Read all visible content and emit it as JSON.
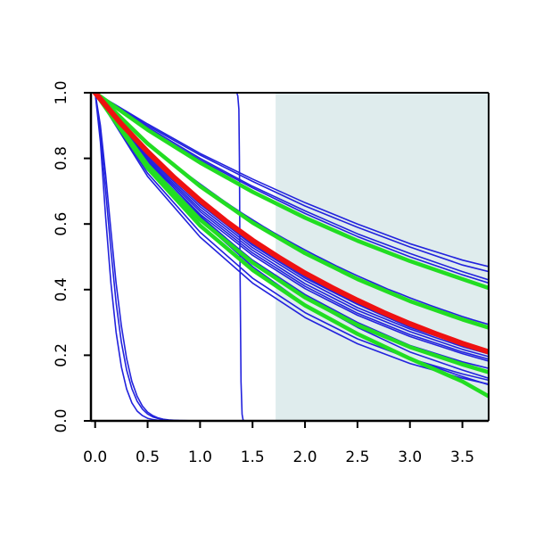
{
  "chart_data": {
    "type": "line",
    "title": "",
    "xlabel": "",
    "ylabel": "",
    "xlim": [
      -0.04,
      3.75
    ],
    "ylim": [
      0,
      1
    ],
    "x_ticks": [
      "0.0",
      "0.5",
      "1.0",
      "1.5",
      "2.0",
      "2.5",
      "3.0",
      "3.5"
    ],
    "y_ticks": [
      "0.0",
      "0.2",
      "0.4",
      "0.6",
      "0.8",
      "1.0"
    ],
    "grid": false,
    "legend": "none",
    "shaded_region": {
      "x_start": 1.72,
      "x_end": 3.75,
      "color": "#dfeced"
    },
    "colors": {
      "blue": "#2222dd",
      "green": "#22dd22",
      "red": "#ee1111",
      "axis": "#000000"
    },
    "series": [
      {
        "color": "#2222dd",
        "width": 1.6,
        "x": [
          0,
          0.1,
          0.2,
          0.3,
          0.4,
          0.5,
          0.6,
          0.7,
          0.8,
          0.9,
          1.0,
          1.1,
          1.2,
          1.3,
          1.4,
          1.5,
          1.6,
          1.7,
          1.8,
          1.9,
          2.0,
          2.1,
          2.2,
          2.3,
          2.4,
          2.5,
          2.6,
          2.7,
          2.8,
          2.9,
          3.0,
          3.1,
          3.2,
          3.3,
          3.4,
          3.5,
          3.6,
          3.75
        ],
        "y": [
          1,
          0.969,
          0.938,
          0.908,
          0.879,
          0.85,
          0.823,
          0.796,
          0.771,
          0.746,
          0.722,
          0.699,
          0.676,
          0.654,
          0.633,
          0.613,
          0.593,
          0.574,
          0.556,
          0.538,
          0.521,
          0.504,
          0.488,
          0.472,
          0.457,
          0.442,
          0.428,
          0.414,
          0.4,
          0.388,
          0.375,
          0.363,
          0.351,
          0.34,
          0.329,
          0.318,
          0.308,
          0.294
        ]
      },
      {
        "color": "#2222dd",
        "width": 1.6,
        "x": [
          0,
          0.5,
          1.0,
          1.5,
          2.0,
          2.5,
          3.0,
          3.5,
          3.75
        ],
        "y": [
          1,
          0.9,
          0.81,
          0.73,
          0.655,
          0.59,
          0.53,
          0.475,
          0.455
        ]
      },
      {
        "color": "#2222dd",
        "width": 1.6,
        "x": [
          0,
          0.5,
          1.0,
          1.5,
          2.0,
          2.5,
          3.0,
          3.5,
          3.75
        ],
        "y": [
          1,
          0.905,
          0.815,
          0.737,
          0.665,
          0.6,
          0.54,
          0.49,
          0.47
        ]
      },
      {
        "color": "#2222dd",
        "width": 1.6,
        "x": [
          0,
          0.5,
          1.0,
          1.5,
          2.0,
          2.5,
          3.0,
          3.5,
          3.75
        ],
        "y": [
          1,
          0.895,
          0.8,
          0.715,
          0.64,
          0.57,
          0.51,
          0.455,
          0.43
        ]
      },
      {
        "color": "#2222dd",
        "width": 1.6,
        "x": [
          0,
          0.5,
          1.0,
          1.5,
          2.0,
          2.5,
          3.0,
          3.5,
          3.75
        ],
        "y": [
          1,
          0.89,
          0.795,
          0.71,
          0.632,
          0.562,
          0.5,
          0.445,
          0.42
        ]
      },
      {
        "color": "#2222dd",
        "width": 1.6,
        "x": [
          0,
          0.5,
          1.0,
          1.5,
          2.0,
          2.5,
          3.0,
          3.5,
          3.75
        ],
        "y": [
          1,
          0.81,
          0.66,
          0.535,
          0.435,
          0.355,
          0.285,
          0.232,
          0.21
        ]
      },
      {
        "color": "#2222dd",
        "width": 1.6,
        "x": [
          0,
          0.5,
          1.0,
          1.5,
          2.0,
          2.5,
          3.0,
          3.5,
          3.75
        ],
        "y": [
          1,
          0.815,
          0.665,
          0.54,
          0.44,
          0.357,
          0.29,
          0.237,
          0.215
        ]
      },
      {
        "color": "#2222dd",
        "width": 1.6,
        "x": [
          0,
          0.5,
          1.0,
          1.5,
          2.0,
          2.5,
          3.0,
          3.5,
          3.75
        ],
        "y": [
          1,
          0.805,
          0.653,
          0.528,
          0.428,
          0.345,
          0.28,
          0.226,
          0.204
        ]
      },
      {
        "color": "#2222dd",
        "width": 1.6,
        "x": [
          0,
          0.5,
          1.0,
          1.5,
          2.0,
          2.5,
          3.0,
          3.5,
          3.75
        ],
        "y": [
          1,
          0.8,
          0.645,
          0.52,
          0.418,
          0.337,
          0.272,
          0.218,
          0.196
        ]
      },
      {
        "color": "#2222dd",
        "width": 1.6,
        "x": [
          0,
          0.5,
          1.0,
          1.5,
          2.0,
          2.5,
          3.0,
          3.5,
          3.75
        ],
        "y": [
          1,
          0.795,
          0.638,
          0.512,
          0.41,
          0.328,
          0.263,
          0.21,
          0.188
        ]
      },
      {
        "color": "#2222dd",
        "width": 1.6,
        "x": [
          0,
          0.5,
          1.0,
          1.5,
          2.0,
          2.5,
          3.0,
          3.5,
          3.75
        ],
        "y": [
          1,
          0.79,
          0.63,
          0.505,
          0.403,
          0.322,
          0.257,
          0.205,
          0.182
        ]
      },
      {
        "color": "#2222dd",
        "width": 1.6,
        "x": [
          0,
          0.5,
          1.0,
          1.5,
          2.0,
          2.5,
          3.0,
          3.5,
          3.75
        ],
        "y": [
          1,
          0.785,
          0.62,
          0.49,
          0.385,
          0.3,
          0.23,
          0.18,
          0.16
        ]
      },
      {
        "color": "#2222dd",
        "width": 1.6,
        "x": [
          0,
          0.5,
          1.0,
          1.5,
          2.0,
          2.5,
          3.0,
          3.5,
          3.75
        ],
        "y": [
          1,
          0.795,
          0.625,
          0.488,
          0.375,
          0.285,
          0.21,
          0.155,
          0.13
        ]
      },
      {
        "color": "#2222dd",
        "width": 1.6,
        "x": [
          0,
          0.5,
          1.0,
          1.5,
          2.0,
          2.5,
          3.0,
          3.5,
          3.75
        ],
        "y": [
          1,
          0.79,
          0.612,
          0.47,
          0.355,
          0.262,
          0.19,
          0.135,
          0.11
        ]
      },
      {
        "color": "#2222dd",
        "width": 1.6,
        "x": [
          0,
          0.5,
          1.0,
          1.5,
          2.0,
          2.5,
          3.0,
          3.5,
          3.75
        ],
        "y": [
          1,
          0.755,
          0.575,
          0.435,
          0.33,
          0.25,
          0.19,
          0.143,
          0.124
        ]
      },
      {
        "color": "#2222dd",
        "width": 1.6,
        "x": [
          0,
          0.5,
          1.0,
          1.5,
          2.0,
          2.5,
          3.0,
          3.5,
          3.75
        ],
        "y": [
          1,
          0.745,
          0.56,
          0.42,
          0.315,
          0.235,
          0.175,
          0.13,
          0.112
        ]
      },
      {
        "color": "#2222dd",
        "width": 1.6,
        "x": [
          0,
          0.05,
          0.1,
          0.15,
          0.2,
          0.25,
          0.3,
          0.35,
          0.4,
          0.45,
          0.5,
          0.55,
          0.6,
          0.65,
          0.7,
          0.75,
          0.8,
          0.9,
          1.0,
          1.1,
          3.75
        ],
        "y": [
          1,
          0.9,
          0.75,
          0.58,
          0.42,
          0.29,
          0.19,
          0.12,
          0.075,
          0.045,
          0.027,
          0.016,
          0.009,
          0.005,
          0.003,
          0.002,
          0.001,
          0.0005,
          0.0002,
          0,
          0
        ]
      },
      {
        "color": "#2222dd",
        "width": 1.6,
        "x": [
          0,
          0.05,
          0.1,
          0.15,
          0.2,
          0.25,
          0.3,
          0.35,
          0.4,
          0.45,
          0.5,
          0.55,
          0.6,
          0.65,
          0.7,
          0.75,
          0.8,
          0.9,
          1.0,
          1.1,
          3.75
        ],
        "y": [
          1,
          0.88,
          0.7,
          0.52,
          0.36,
          0.24,
          0.155,
          0.098,
          0.06,
          0.036,
          0.021,
          0.012,
          0.007,
          0.004,
          0.002,
          0.001,
          0.0007,
          0.0002,
          0.0001,
          0,
          0
        ]
      },
      {
        "color": "#2222dd",
        "width": 1.6,
        "x": [
          0,
          0.05,
          0.1,
          0.15,
          0.2,
          0.25,
          0.3,
          0.35,
          0.4,
          0.45,
          0.5,
          0.55,
          0.6,
          0.65,
          0.7,
          0.75,
          0.8,
          0.9,
          1.0,
          3.75
        ],
        "y": [
          1,
          0.85,
          0.62,
          0.42,
          0.27,
          0.165,
          0.097,
          0.055,
          0.03,
          0.016,
          0.008,
          0.004,
          0.002,
          0.001,
          0.0005,
          0.0002,
          0.0001,
          0,
          0,
          0
        ]
      },
      {
        "color": "#2222dd",
        "width": 1.6,
        "x": [
          0,
          1.0,
          1.35,
          1.36,
          1.37,
          1.375,
          1.38,
          1.39,
          1.4,
          1.41,
          1.42,
          3.75
        ],
        "y": [
          1,
          1,
          1,
          0.99,
          0.95,
          0.8,
          0.5,
          0.12,
          0.02,
          0.003,
          0,
          0
        ]
      },
      {
        "color": "#22dd22",
        "width": 4.5,
        "x": [
          0,
          0.5,
          1.0,
          1.5,
          2.0,
          2.5,
          3.0,
          3.5,
          3.75
        ],
        "y": [
          1,
          0.887,
          0.787,
          0.698,
          0.619,
          0.549,
          0.487,
          0.432,
          0.405
        ]
      },
      {
        "color": "#22dd22",
        "width": 4.5,
        "x": [
          0,
          0.5,
          1.0,
          1.5,
          2.0,
          2.5,
          3.0,
          3.5,
          3.75
        ],
        "y": [
          1,
          0.845,
          0.715,
          0.604,
          0.511,
          0.432,
          0.365,
          0.309,
          0.284
        ]
      },
      {
        "color": "#22dd22",
        "width": 4.5,
        "x": [
          0,
          0.5,
          1.0,
          1.5,
          2.0,
          2.5,
          3.0,
          3.5,
          3.75
        ],
        "y": [
          1,
          0.78,
          0.613,
          0.482,
          0.376,
          0.292,
          0.225,
          0.172,
          0.148
        ]
      },
      {
        "color": "#22dd22",
        "width": 4.5,
        "x": [
          0,
          0.5,
          1.0,
          1.5,
          2.0,
          2.5,
          3.0,
          3.5,
          3.75
        ],
        "y": [
          1,
          0.77,
          0.595,
          0.46,
          0.352,
          0.265,
          0.19,
          0.12,
          0.075
        ]
      },
      {
        "color": "#ee1111",
        "width": 6,
        "x": [
          0,
          0.25,
          0.5,
          0.75,
          1.0,
          1.25,
          1.5,
          1.75,
          2.0,
          2.25,
          2.5,
          2.75,
          3.0,
          3.25,
          3.5,
          3.75
        ],
        "y": [
          1,
          0.905,
          0.82,
          0.742,
          0.672,
          0.608,
          0.55,
          0.498,
          0.45,
          0.407,
          0.367,
          0.33,
          0.296,
          0.265,
          0.236,
          0.21
        ]
      }
    ]
  }
}
